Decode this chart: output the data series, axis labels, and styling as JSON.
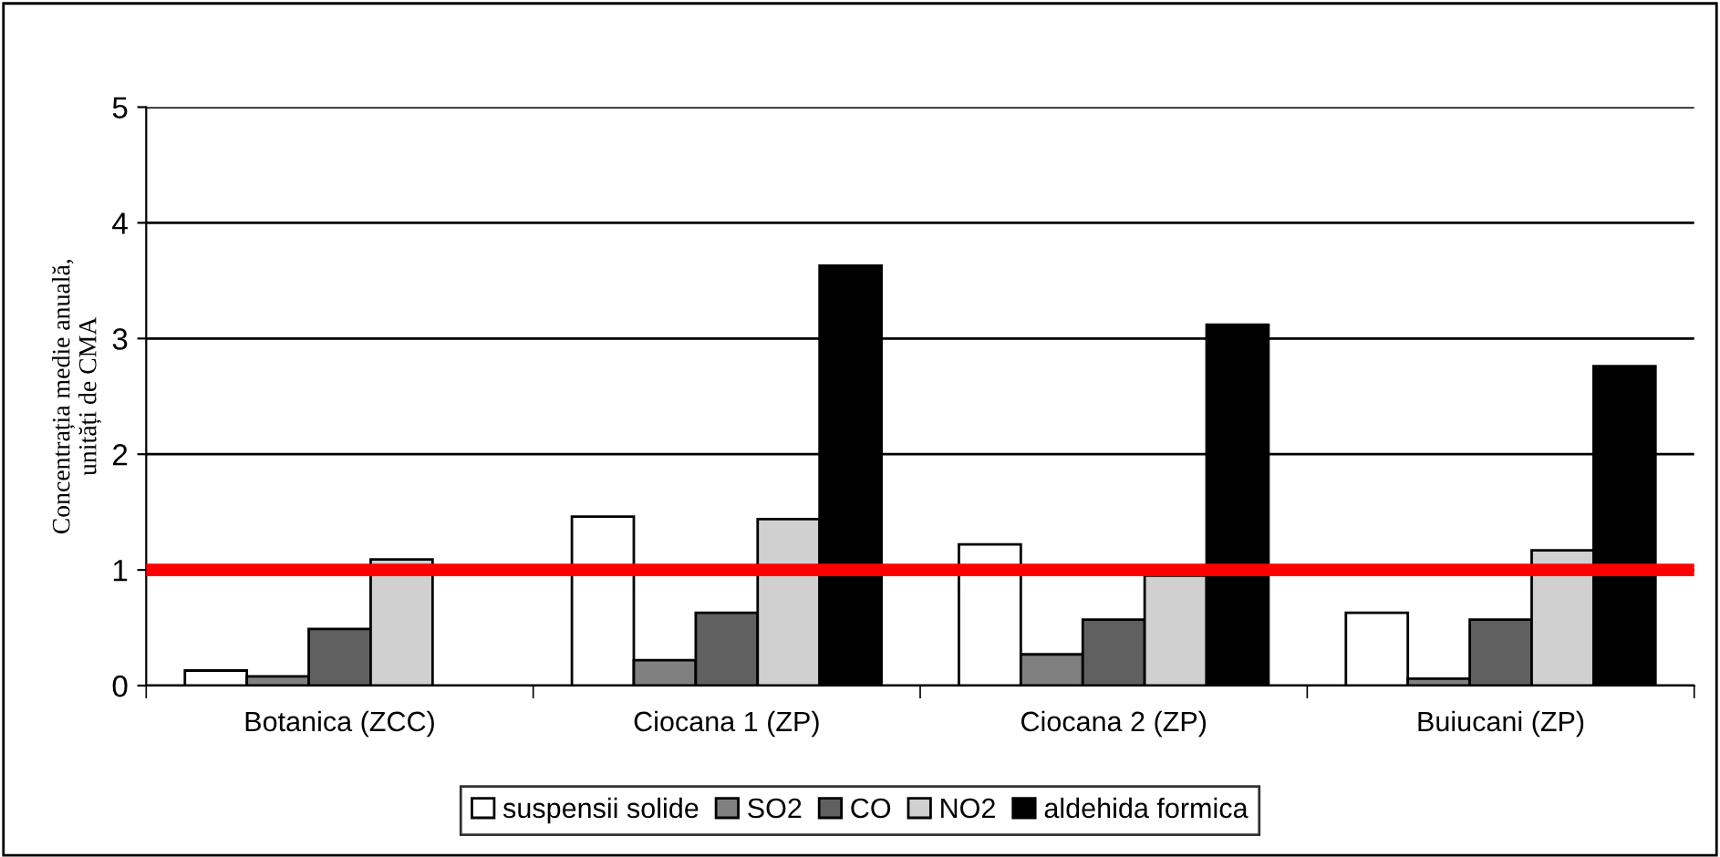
{
  "chart_data": {
    "type": "bar",
    "ylabel": "Concentrația medie anuală,\nunități de CMA",
    "categories": [
      "Botanica (ZCC)",
      "Ciocana 1 (ZP)",
      "Ciocana 2 (ZP)",
      "Buiucani (ZP)"
    ],
    "series": [
      {
        "name": "suspensii solide",
        "color": "#ffffff",
        "values": [
          0.13,
          1.46,
          1.22,
          0.63
        ]
      },
      {
        "name": "SO2",
        "color": "#808080",
        "values": [
          0.08,
          0.22,
          0.27,
          0.06
        ]
      },
      {
        "name": "CO",
        "color": "#606060",
        "values": [
          0.49,
          0.63,
          0.57,
          0.57
        ]
      },
      {
        "name": "NO2",
        "color": "#d0d0d0",
        "values": [
          1.09,
          1.44,
          0.95,
          1.17
        ]
      },
      {
        "name": "aldehida formica",
        "color": "#000000",
        "values": [
          null,
          3.63,
          3.12,
          2.76
        ]
      }
    ],
    "ylim": [
      0,
      5
    ],
    "yticks": [
      0,
      1,
      2,
      3,
      4,
      5
    ],
    "grid": "y",
    "legend": "bottom",
    "ref_lines": [
      {
        "axis": "y",
        "value": 1,
        "color": "#ff0000"
      }
    ]
  }
}
